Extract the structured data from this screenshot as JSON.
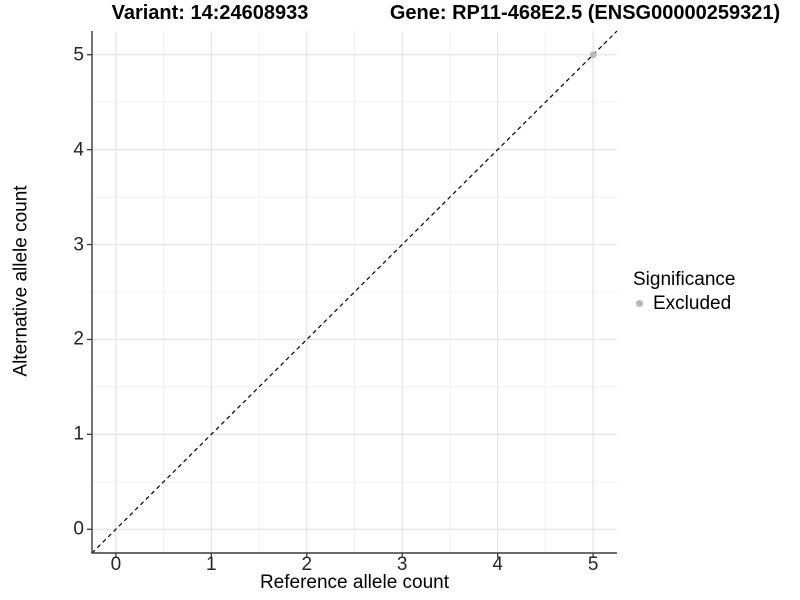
{
  "titles": {
    "left": "Variant: 14:24608933",
    "right": "Gene: RP11-468E2.5 (ENSG00000259321)"
  },
  "chart_data": {
    "type": "scatter",
    "xlabel": "Reference allele count",
    "ylabel": "Alternative allele count",
    "xlim": [
      -0.25,
      5.25
    ],
    "ylim": [
      -0.25,
      5.25
    ],
    "x_ticks": [
      0,
      1,
      2,
      3,
      4,
      5
    ],
    "y_ticks": [
      0,
      1,
      2,
      3,
      4,
      5
    ],
    "x_minor_ticks": [
      0.5,
      1.5,
      2.5,
      3.5,
      4.5
    ],
    "y_minor_ticks": [
      0.5,
      1.5,
      2.5,
      3.5,
      4.5
    ],
    "grid": "major+minor",
    "identity_line": {
      "slope": 1,
      "intercept": 0,
      "style": "dashed",
      "color": "#000000"
    },
    "series": [
      {
        "name": "Excluded",
        "color": "#b8b8b8",
        "points": [
          [
            5,
            5
          ]
        ]
      }
    ],
    "legend": {
      "title": "Significance",
      "position": "right",
      "items": [
        {
          "label": "Excluded",
          "color": "#b8b8b8",
          "marker": "circle"
        }
      ]
    }
  },
  "colors": {
    "background": "#ffffff",
    "axis_line": "#3a3a3a",
    "tick_text": "#262626",
    "grid_major": "#e4e4e4",
    "grid_minor": "#f1f1f1",
    "point_excluded": "#b8b8b8",
    "identity_line": "#000000"
  }
}
